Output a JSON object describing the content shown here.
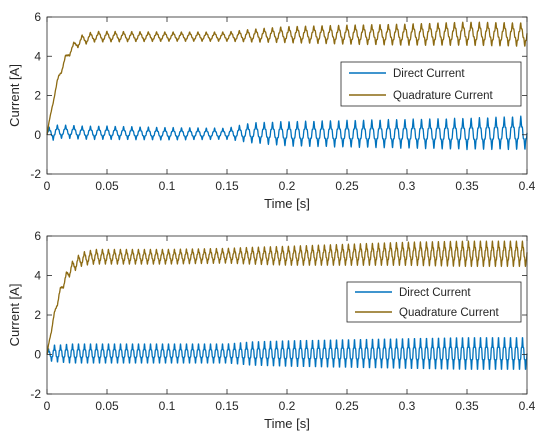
{
  "chart_data": [
    {
      "type": "line",
      "title": "",
      "xlabel": "Time [s]",
      "ylabel": "Current [A]",
      "xlim": [
        0,
        0.4
      ],
      "ylim": [
        -2,
        6
      ],
      "xticks": [
        0,
        0.05,
        0.1,
        0.15,
        0.2,
        0.25,
        0.3,
        0.35,
        0.4
      ],
      "xtick_labels": [
        "0",
        "0.05",
        "0.1",
        "0.15",
        "0.2",
        "0.25",
        "0.3",
        "0.35",
        "0.4"
      ],
      "yticks": [
        -2,
        0,
        2,
        4,
        6
      ],
      "ytick_labels": [
        "-2",
        "0",
        "2",
        "4",
        "6"
      ],
      "legend_position": "right",
      "series": [
        {
          "name": "Direct Current",
          "color": "#0072BD",
          "x": [
            0,
            0.005,
            0.01,
            0.02,
            0.03,
            0.05,
            0.1,
            0.15,
            0.17,
            0.2,
            0.25,
            0.3,
            0.35,
            0.4
          ],
          "y_center": [
            0,
            0.12,
            0.15,
            0.15,
            0.1,
            0.1,
            0.05,
            0.05,
            0.1,
            0.05,
            0.05,
            0.05,
            0.05,
            0.1
          ],
          "y_half_ripple": [
            0.3,
            0.35,
            0.3,
            0.3,
            0.3,
            0.3,
            0.28,
            0.25,
            0.45,
            0.55,
            0.6,
            0.65,
            0.7,
            0.75
          ],
          "ripple_frequency_hz": 145
        },
        {
          "name": "Quadrature Current",
          "color": "#8C6A12",
          "x": [
            0,
            0.005,
            0.01,
            0.015,
            0.02,
            0.025,
            0.03,
            0.04,
            0.05,
            0.1,
            0.15,
            0.17,
            0.2,
            0.25,
            0.3,
            0.35,
            0.4
          ],
          "y_center": [
            0,
            1.7,
            3.0,
            3.8,
            4.35,
            4.65,
            4.85,
            5.0,
            5.0,
            5.0,
            5.0,
            5.05,
            5.1,
            5.1,
            5.1,
            5.15,
            5.1
          ],
          "y_half_ripple": [
            0.05,
            0.12,
            0.15,
            0.18,
            0.2,
            0.22,
            0.25,
            0.25,
            0.25,
            0.22,
            0.22,
            0.3,
            0.38,
            0.45,
            0.5,
            0.55,
            0.55
          ],
          "ripple_frequency_hz": 145
        }
      ]
    },
    {
      "type": "line",
      "title": "",
      "xlabel": "Time [s]",
      "ylabel": "Current [A]",
      "xlim": [
        0,
        0.4
      ],
      "ylim": [
        -2,
        6
      ],
      "xticks": [
        0,
        0.05,
        0.1,
        0.15,
        0.2,
        0.25,
        0.3,
        0.35,
        0.4
      ],
      "xtick_labels": [
        "0",
        "0.05",
        "0.1",
        "0.15",
        "0.2",
        "0.25",
        "0.3",
        "0.35",
        "0.4"
      ],
      "yticks": [
        -2,
        0,
        2,
        4,
        6
      ],
      "ytick_labels": [
        "-2",
        "0",
        "2",
        "4",
        "6"
      ],
      "legend_position": "right",
      "series": [
        {
          "name": "Direct Current",
          "color": "#0072BD",
          "x": [
            0,
            0.005,
            0.01,
            0.02,
            0.05,
            0.1,
            0.15,
            0.17,
            0.2,
            0.25,
            0.3,
            0.35,
            0.4
          ],
          "y_center": [
            0,
            0.05,
            0.05,
            0.05,
            0.05,
            0.05,
            0.05,
            0.05,
            0.05,
            0.05,
            0.05,
            0.05,
            0.05
          ],
          "y_half_ripple": [
            0.2,
            0.4,
            0.4,
            0.45,
            0.45,
            0.45,
            0.45,
            0.55,
            0.6,
            0.65,
            0.7,
            0.75,
            0.75
          ],
          "ripple_frequency_hz": 200
        },
        {
          "name": "Quadrature Current",
          "color": "#8C6A12",
          "x": [
            0,
            0.005,
            0.01,
            0.015,
            0.02,
            0.025,
            0.03,
            0.04,
            0.05,
            0.1,
            0.15,
            0.17,
            0.2,
            0.25,
            0.3,
            0.35,
            0.4
          ],
          "y_center": [
            0,
            1.7,
            3.0,
            3.8,
            4.35,
            4.65,
            4.85,
            4.95,
            4.95,
            4.95,
            5.0,
            5.0,
            5.0,
            5.05,
            5.1,
            5.1,
            5.1
          ],
          "y_half_ripple": [
            0.05,
            0.12,
            0.18,
            0.22,
            0.28,
            0.3,
            0.32,
            0.35,
            0.35,
            0.35,
            0.35,
            0.4,
            0.45,
            0.5,
            0.55,
            0.6,
            0.6
          ],
          "ripple_frequency_hz": 200
        }
      ]
    }
  ]
}
